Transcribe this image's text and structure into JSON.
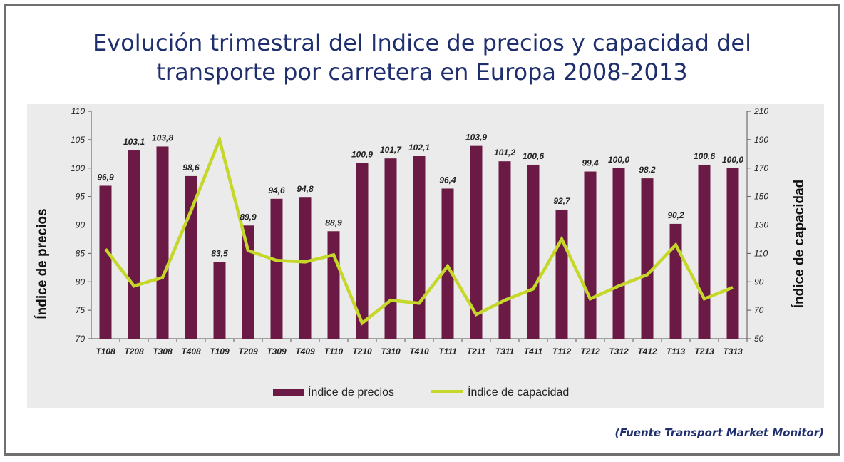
{
  "title_line1": "Evolución trimestral del Indice de precios y capacidad del",
  "title_line2": "transporte por carretera en Europa 2008-2013",
  "source": "(Fuente Transport Market Monitor)",
  "colors": {
    "bar": "#6b1a45",
    "line": "#c5d82a",
    "plot_bg": "#ebebeb",
    "title": "#1f2f6e"
  },
  "chart_data": {
    "type": "bar+line",
    "categories": [
      "T108",
      "T208",
      "T308",
      "T408",
      "T109",
      "T209",
      "T309",
      "T409",
      "T110",
      "T210",
      "T310",
      "T410",
      "T111",
      "T211",
      "T311",
      "T411",
      "T112",
      "T212",
      "T312",
      "T412",
      "T113",
      "T213",
      "T313"
    ],
    "series": [
      {
        "name": "Índice de precios",
        "type": "bar",
        "axis": "left",
        "values": [
          96.9,
          103.1,
          103.8,
          98.6,
          83.5,
          89.9,
          94.6,
          94.8,
          88.9,
          100.9,
          101.7,
          102.1,
          96.4,
          103.9,
          101.2,
          100.6,
          92.7,
          99.4,
          100.0,
          98.2,
          90.2,
          100.6,
          100.0
        ],
        "labels": [
          "96,9",
          "103,1",
          "103,8",
          "98,6",
          "83,5",
          "89,9",
          "94,6",
          "94,8",
          "88,9",
          "100,9",
          "101,7",
          "102,1",
          "96,4",
          "103,9",
          "101,2",
          "100,6",
          "92,7",
          "99,4",
          "100,0",
          "98,2",
          "90,2",
          "100,6",
          "100,0"
        ]
      },
      {
        "name": "Índice de capacidad",
        "type": "line",
        "axis": "right",
        "values": [
          113,
          87,
          93,
          140,
          190,
          112,
          105,
          104,
          109,
          61,
          77,
          75,
          101,
          67,
          77,
          85,
          120,
          78,
          87,
          95,
          116,
          78,
          86
        ]
      }
    ],
    "yleft": {
      "label": "Índice de precios",
      "min": 70,
      "max": 110,
      "ticks": [
        "70",
        "75",
        "80",
        "85",
        "90",
        "95",
        "100",
        "105",
        "110"
      ]
    },
    "yright": {
      "label": "Índice de capacidad",
      "min": 50,
      "max": 210,
      "ticks": [
        "50",
        "70",
        "90",
        "110",
        "130",
        "150",
        "170",
        "190",
        "210"
      ]
    },
    "legend": [
      "Índice de precios",
      "Índice de capacidad"
    ]
  }
}
